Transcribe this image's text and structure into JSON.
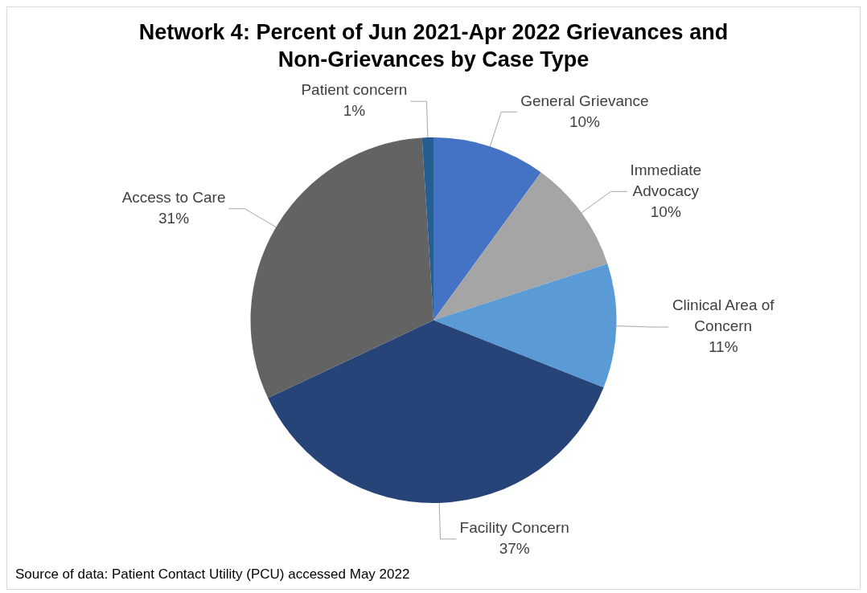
{
  "chart_data": {
    "type": "pie",
    "title": "Network 4:  Percent of Jun 2021-Apr 2022 Grievances and Non-Grievances by Case Type",
    "categories": [
      "General Grievance",
      "Immediate Advocacy",
      "Clinical Area of Concern",
      "Facility Concern",
      "Access to Care",
      "Patient concern"
    ],
    "values": [
      10,
      10,
      11,
      37,
      31,
      1
    ],
    "colors": [
      "#4472c4",
      "#a5a5a5",
      "#5b9bd5",
      "#264478",
      "#636363",
      "#255e91"
    ],
    "value_labels": [
      "10%",
      "10%",
      "11%",
      "37%",
      "31%",
      "1%"
    ],
    "legend": false,
    "annotations": [
      "Source of data:  Patient Contact Utility (PCU) accessed May 2022"
    ]
  }
}
